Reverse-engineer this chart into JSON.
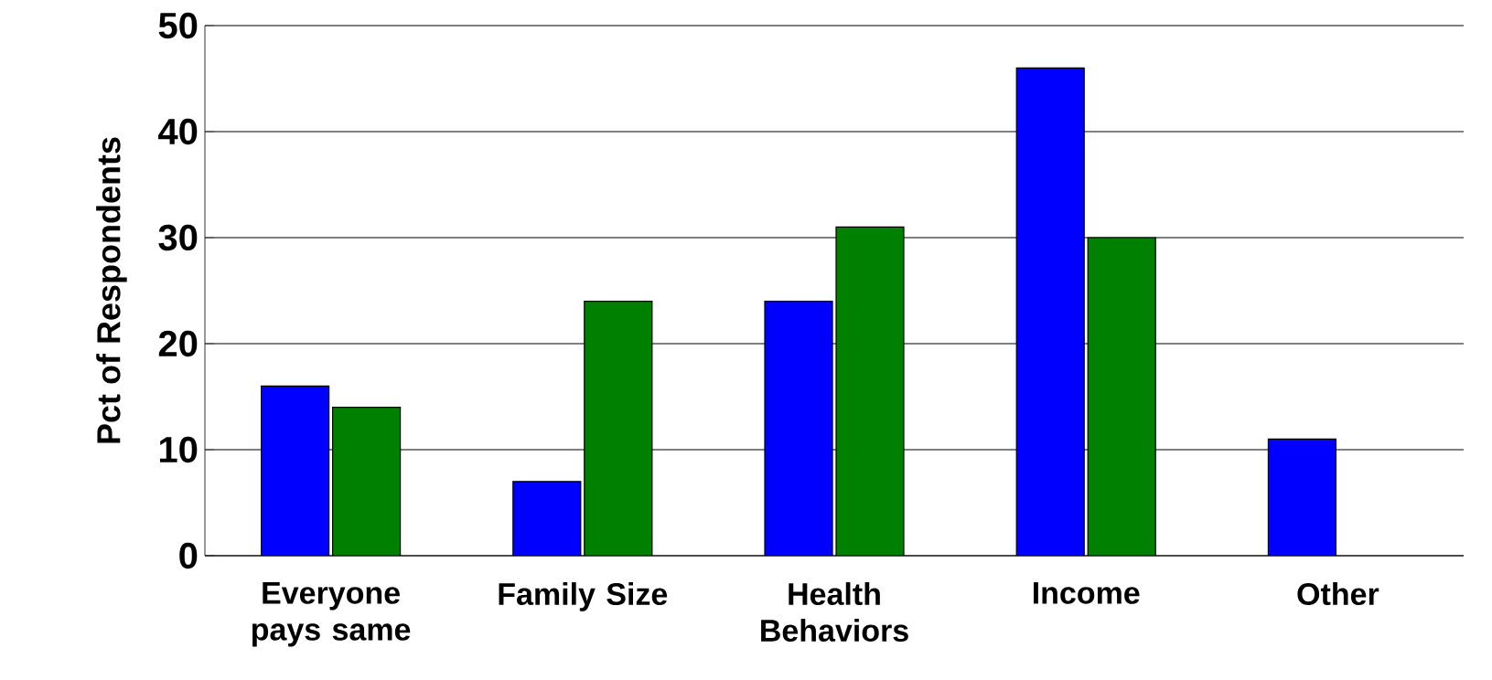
{
  "chart_data": {
    "type": "bar",
    "ylabel": "Pct of Respondents",
    "categories": [
      "Everyone pays same",
      "Family Size",
      "Health Behaviors",
      "Income",
      "Other"
    ],
    "series": [
      {
        "color": "#0000ff",
        "values": [
          16,
          7,
          24,
          46,
          11
        ]
      },
      {
        "color": "#008000",
        "values": [
          14,
          24,
          31,
          30,
          null
        ]
      }
    ],
    "ylim": [
      0,
      50
    ],
    "yticks": [
      0,
      10,
      20,
      30,
      40,
      50
    ],
    "grid": "y"
  }
}
